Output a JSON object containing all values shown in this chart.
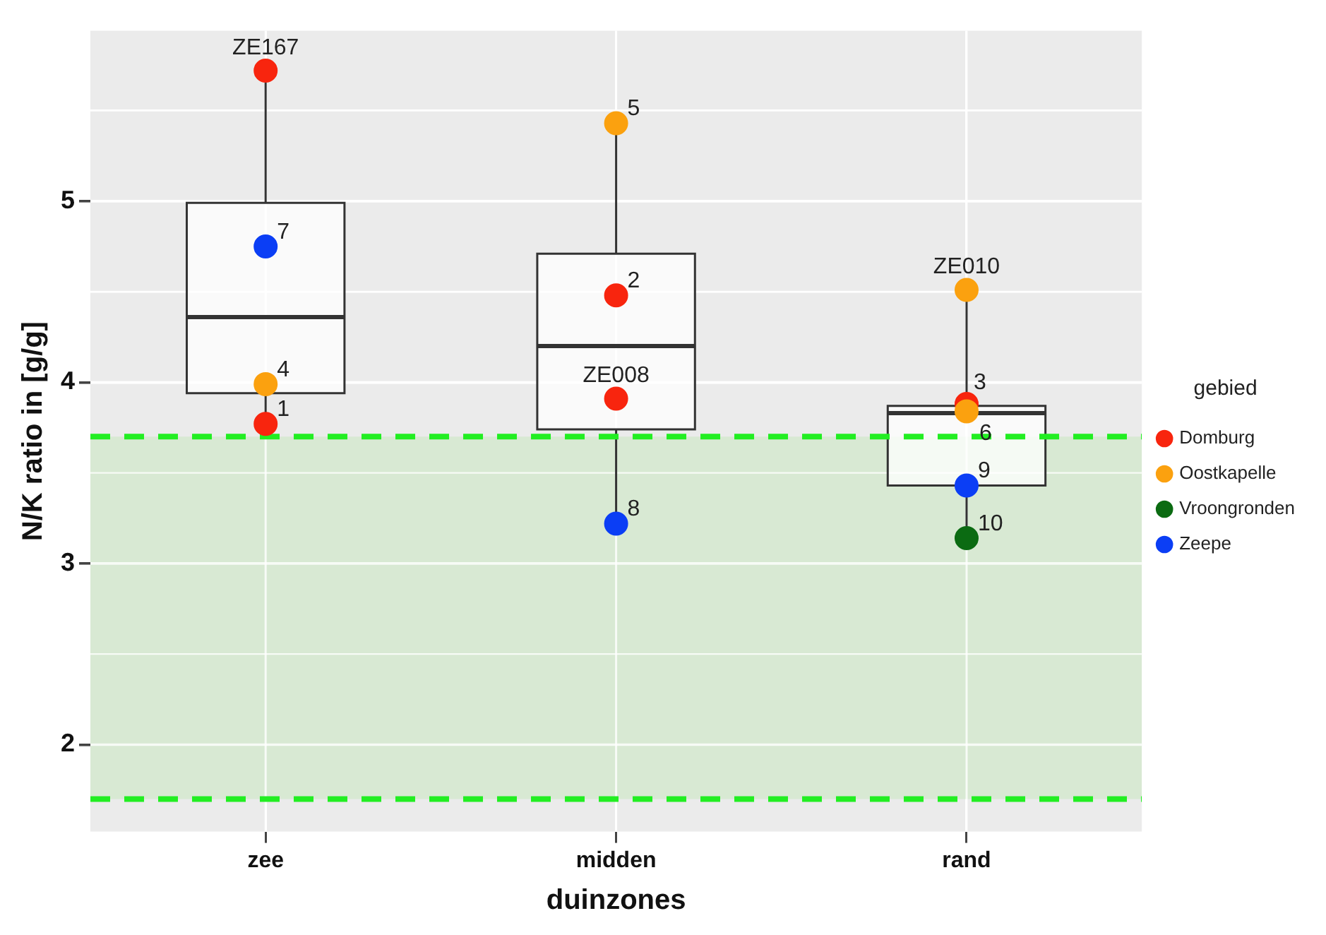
{
  "chart_data": {
    "type": "box",
    "xlabel": "duinzones",
    "ylabel": "N/K ratio in [g/g]",
    "legend_title": "gebied",
    "legend": "right",
    "grid": true,
    "marker": "circle",
    "categories": [
      "zee",
      "midden",
      "rand"
    ],
    "ylim": [
      1.52,
      5.94
    ],
    "yticks": [
      {
        "value": 2,
        "label": "2"
      },
      {
        "value": 2.5,
        "label": null
      },
      {
        "value": 3,
        "label": "3"
      },
      {
        "value": 3.5,
        "label": null
      },
      {
        "value": 4,
        "label": "4"
      },
      {
        "value": 4.5,
        "label": null
      },
      {
        "value": 5,
        "label": "5"
      },
      {
        "value": 5.5,
        "label": null
      }
    ],
    "boxes": [
      {
        "low": 3.77,
        "q1": 3.94,
        "median": 4.36,
        "q3": 4.99,
        "high": 5.72
      },
      {
        "low": 3.22,
        "q1": 3.74,
        "median": 4.2,
        "q3": 4.71,
        "high": 5.43
      },
      {
        "low": 3.14,
        "q1": 3.43,
        "median": 3.83,
        "q3": 3.87,
        "high": 4.51
      }
    ],
    "series": [
      {
        "name": "Domburg",
        "type": "scatter",
        "color": "#f8250e",
        "x": [
          "zee",
          "zee",
          "midden",
          "midden",
          "rand"
        ],
        "values": [
          5.72,
          3.77,
          4.48,
          3.91,
          3.88
        ]
      },
      {
        "name": "Oostkapelle",
        "type": "scatter",
        "color": "#fba10f",
        "x": [
          "zee",
          "midden",
          "rand",
          "rand"
        ],
        "values": [
          3.99,
          5.43,
          4.51,
          3.84
        ]
      },
      {
        "name": "Vroongronden",
        "type": "scatter",
        "color": "#0b6b12",
        "x": [
          "rand"
        ],
        "values": [
          3.14
        ]
      },
      {
        "name": "Zeepe",
        "type": "scatter",
        "color": "#0b3ef5",
        "x": [
          "zee",
          "midden",
          "rand"
        ],
        "values": [
          4.75,
          3.22,
          3.43
        ]
      }
    ],
    "ref_lines": [
      {
        "axis": "y",
        "value": 3.7,
        "color": "#22ee22",
        "line_style": "dashed"
      },
      {
        "axis": "y",
        "value": 1.7,
        "color": "#22ee22",
        "line_style": "dashed"
      }
    ],
    "bands": [
      {
        "axis": "y",
        "from": 1.7,
        "to": 3.7,
        "color": "#d8e9d3"
      }
    ],
    "annotations": [
      {
        "text": "ZE167",
        "x": "zee",
        "y": 5.72
      },
      {
        "text": "7",
        "x": "zee",
        "y": 4.75
      },
      {
        "text": "4",
        "x": "zee",
        "y": 3.99
      },
      {
        "text": "1",
        "x": "zee",
        "y": 3.77
      },
      {
        "text": "5",
        "x": "midden",
        "y": 5.43
      },
      {
        "text": "2",
        "x": "midden",
        "y": 4.48
      },
      {
        "text": "ZE008",
        "x": "midden",
        "y": 3.91
      },
      {
        "text": "8",
        "x": "midden",
        "y": 3.22
      },
      {
        "text": "ZE010",
        "x": "rand",
        "y": 4.51
      },
      {
        "text": "3",
        "x": "rand",
        "y": 3.88
      },
      {
        "text": "6",
        "x": "rand",
        "y": 3.84
      },
      {
        "text": "9",
        "x": "rand",
        "y": 3.43
      },
      {
        "text": "10",
        "x": "rand",
        "y": 3.14
      }
    ]
  }
}
